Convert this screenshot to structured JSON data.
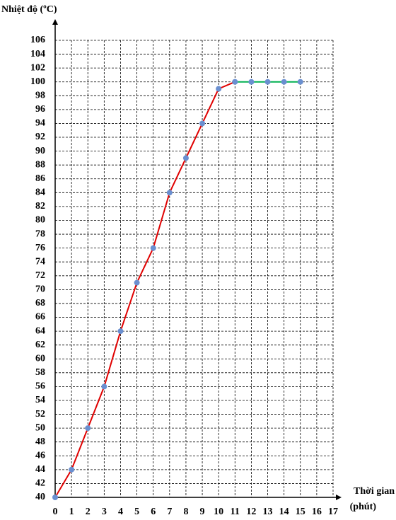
{
  "chart_data": {
    "type": "line",
    "ylabel": "Nhiệt độ  (ºC)",
    "xlabel": [
      "Thời gian",
      "(phút)"
    ],
    "x": [
      0,
      1,
      2,
      3,
      4,
      5,
      6,
      7,
      8,
      9,
      10,
      11,
      12,
      13,
      14,
      15
    ],
    "series": [
      {
        "color": "#e00000",
        "values": [
          40,
          44,
          50,
          56,
          64,
          71,
          76,
          84,
          89,
          94,
          99,
          100,
          null,
          null,
          null,
          null
        ]
      },
      {
        "color": "#00b050",
        "values": [
          null,
          null,
          null,
          null,
          null,
          null,
          null,
          null,
          null,
          null,
          null,
          100,
          100,
          100,
          100,
          100
        ]
      }
    ],
    "marker_color": "#6a8fd0",
    "xlim": [
      0,
      17
    ],
    "xticks": [
      0,
      1,
      2,
      3,
      4,
      5,
      6,
      7,
      8,
      9,
      10,
      11,
      12,
      13,
      14,
      15,
      16,
      17
    ],
    "ylim": [
      40,
      106
    ],
    "yticks": [
      40,
      42,
      44,
      46,
      48,
      50,
      52,
      54,
      56,
      58,
      60,
      62,
      64,
      66,
      68,
      70,
      72,
      74,
      76,
      78,
      80,
      82,
      84,
      86,
      88,
      90,
      92,
      94,
      96,
      98,
      100,
      102,
      104,
      106
    ],
    "grid": true
  }
}
